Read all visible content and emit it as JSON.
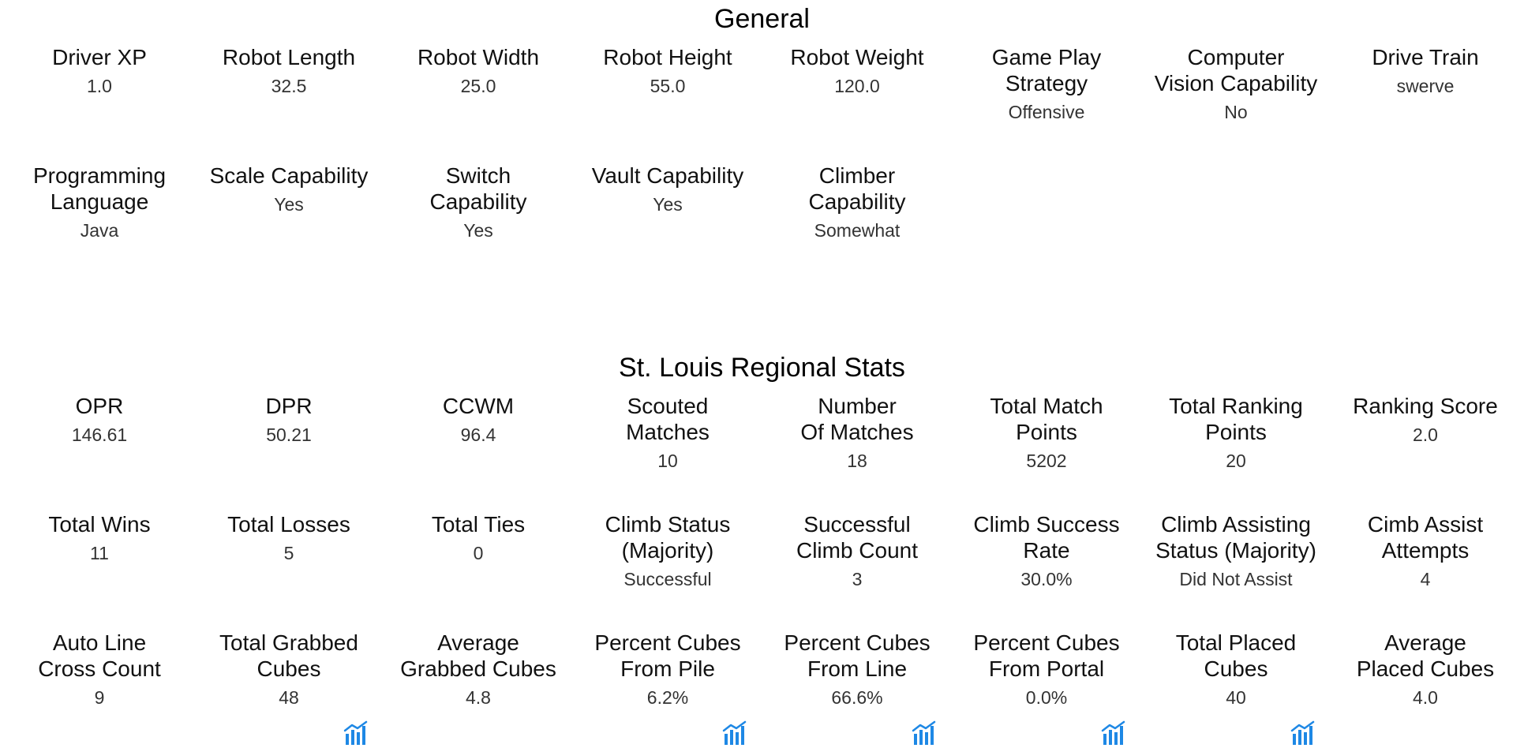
{
  "accent_color": "#1e88e5",
  "sections": [
    {
      "title": "General",
      "items": [
        {
          "label": "Driver XP",
          "value": "1.0"
        },
        {
          "label": "Robot Length",
          "value": "32.5"
        },
        {
          "label": "Robot Width",
          "value": "25.0"
        },
        {
          "label": "Robot Height",
          "value": "55.0"
        },
        {
          "label": "Robot Weight",
          "value": "120.0"
        },
        {
          "label": "Game Play\nStrategy",
          "value": "Offensive"
        },
        {
          "label": "Computer\nVision Capability",
          "value": "No"
        },
        {
          "label": "Drive Train",
          "value": "swerve"
        },
        {
          "label": "Programming\nLanguage",
          "value": "Java"
        },
        {
          "label": "Scale Capability",
          "value": "Yes"
        },
        {
          "label": "Switch\nCapability",
          "value": "Yes"
        },
        {
          "label": "Vault Capability",
          "value": "Yes"
        },
        {
          "label": "Climber\nCapability",
          "value": "Somewhat"
        }
      ]
    },
    {
      "title": "St. Louis Regional Stats",
      "items": [
        {
          "label": "OPR",
          "value": "146.61"
        },
        {
          "label": "DPR",
          "value": "50.21"
        },
        {
          "label": "CCWM",
          "value": "96.4"
        },
        {
          "label": "Scouted\nMatches",
          "value": "10"
        },
        {
          "label": "Number\nOf Matches",
          "value": "18"
        },
        {
          "label": "Total Match\nPoints",
          "value": "5202"
        },
        {
          "label": "Total Ranking\nPoints",
          "value": "20"
        },
        {
          "label": "Ranking Score",
          "value": "2.0"
        },
        {
          "label": "Total Wins",
          "value": "11"
        },
        {
          "label": "Total Losses",
          "value": "5"
        },
        {
          "label": "Total Ties",
          "value": "0"
        },
        {
          "label": "Climb Status\n(Majority)",
          "value": "Successful"
        },
        {
          "label": "Successful\nClimb Count",
          "value": "3"
        },
        {
          "label": "Climb Success\nRate",
          "value": "30.0%"
        },
        {
          "label": "Climb Assisting\nStatus (Majority)",
          "value": "Did Not Assist"
        },
        {
          "label": "Cimb Assist\nAttempts",
          "value": "4"
        },
        {
          "label": "Auto Line\nCross Count",
          "value": "9"
        },
        {
          "label": "Total Grabbed\nCubes",
          "value": "48",
          "graph_icon": "bar-chart-icon"
        },
        {
          "label": "Average\nGrabbed Cubes",
          "value": "4.8"
        },
        {
          "label": "Percent Cubes\nFrom Pile",
          "value": "6.2%",
          "graph_icon": "bar-chart-icon"
        },
        {
          "label": "Percent Cubes\nFrom Line",
          "value": "66.6%",
          "graph_icon": "bar-chart-icon"
        },
        {
          "label": "Percent Cubes\nFrom Portal",
          "value": "0.0%",
          "graph_icon": "bar-chart-icon"
        },
        {
          "label": "Total Placed\nCubes",
          "value": "40",
          "graph_icon": "bar-chart-icon"
        },
        {
          "label": "Average\nPlaced Cubes",
          "value": "4.0"
        }
      ]
    }
  ]
}
